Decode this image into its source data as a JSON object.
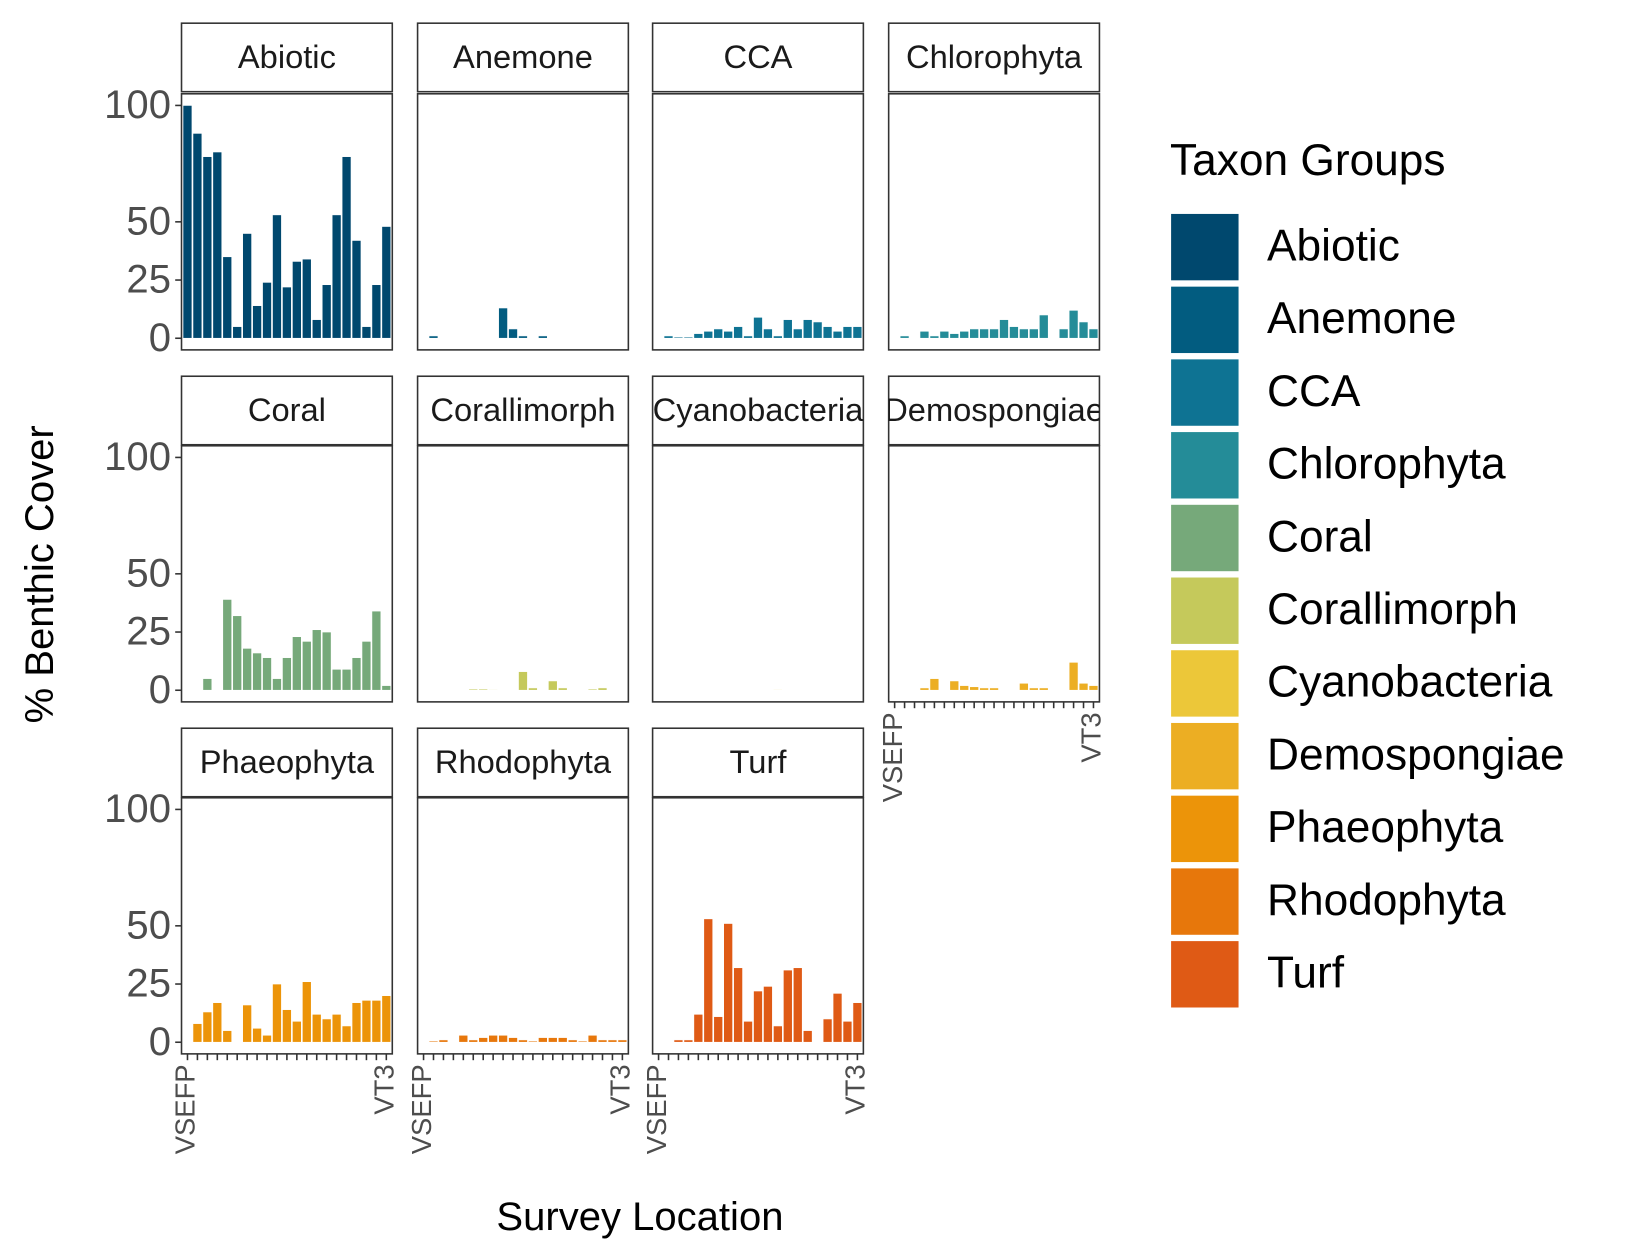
{
  "chart_data": {
    "type": "bar",
    "xlabel": "Survey Location",
    "ylabel": "% Benthic Cover",
    "legend_title": "Taxon Groups",
    "legend": "right",
    "categories": [
      "VSEFP",
      null,
      null,
      null,
      null,
      null,
      null,
      null,
      null,
      null,
      null,
      null,
      null,
      null,
      null,
      null,
      null,
      null,
      null,
      null,
      "VT3"
    ],
    "ylim": [
      -5,
      105
    ],
    "yticks": [
      0,
      25,
      50,
      100
    ],
    "series": [
      {
        "name": "Abiotic",
        "color": "#00486e",
        "values": [
          100,
          88,
          78,
          80,
          35,
          5,
          45,
          14,
          24,
          53,
          22,
          33,
          34,
          8,
          23,
          53,
          78,
          42,
          5,
          23,
          48
        ]
      },
      {
        "name": "Anemone",
        "color": "#025c80",
        "values": [
          0,
          1,
          0,
          0,
          0,
          0,
          0,
          0,
          13,
          4,
          1,
          0,
          1,
          0,
          0,
          0,
          0,
          0,
          0,
          0,
          0
        ]
      },
      {
        "name": "CCA",
        "color": "#0e7393",
        "values": [
          0,
          1,
          0.5,
          0.5,
          2,
          3,
          4,
          3,
          5,
          1,
          9,
          4,
          1,
          8,
          4,
          8,
          7,
          5,
          3,
          5,
          5
        ]
      },
      {
        "name": "Chlorophyta",
        "color": "#248c98",
        "values": [
          0,
          1,
          0,
          3,
          1,
          3,
          2,
          3,
          4,
          4,
          4,
          8,
          5,
          4,
          4,
          10,
          0,
          4,
          12,
          7,
          4
        ]
      },
      {
        "name": "Coral",
        "color": "#76a97a",
        "values": [
          0,
          0,
          5,
          0,
          39,
          32,
          18,
          16,
          14,
          5,
          14,
          23,
          21,
          26,
          25,
          9,
          9,
          14,
          21,
          34,
          2
        ]
      },
      {
        "name": "Corallimorph",
        "color": "#c5c95b",
        "values": [
          0,
          0,
          0,
          0,
          0,
          0.5,
          0.5,
          0.3,
          0,
          0,
          8,
          1,
          0,
          4,
          1,
          0,
          0,
          0.5,
          1,
          0,
          0
        ]
      },
      {
        "name": "Cyanobacteria",
        "color": "#ecc739",
        "values": [
          0,
          0,
          0,
          0,
          0,
          0,
          0,
          0,
          0,
          0,
          0,
          0,
          0.3,
          0,
          0,
          0,
          0,
          0,
          0,
          0,
          0
        ]
      },
      {
        "name": "Demospongiae",
        "color": "#ecae23",
        "values": [
          0,
          0,
          0,
          1,
          5,
          0,
          4,
          2,
          1.5,
          1,
          1,
          0,
          0,
          3,
          1,
          1,
          0,
          0,
          12,
          3,
          2
        ]
      },
      {
        "name": "Phaeophyta",
        "color": "#ec9409",
        "values": [
          0,
          8,
          13,
          17,
          5,
          0,
          16,
          6,
          3,
          25,
          14,
          9,
          26,
          12,
          10,
          12,
          7,
          17,
          18,
          18,
          20
        ]
      },
      {
        "name": "Rhodophyta",
        "color": "#e7770b",
        "values": [
          0,
          0.5,
          1,
          0,
          3,
          1,
          2,
          3,
          3,
          2,
          1,
          0.5,
          2,
          2,
          2,
          1,
          0.5,
          3,
          1,
          1,
          1
        ]
      },
      {
        "name": "Turf",
        "color": "#df5a15",
        "values": [
          0,
          0,
          1,
          1,
          12,
          53,
          11,
          51,
          32,
          9,
          22,
          24,
          7,
          31,
          32,
          5,
          0,
          10,
          21,
          9,
          17
        ]
      }
    ]
  }
}
